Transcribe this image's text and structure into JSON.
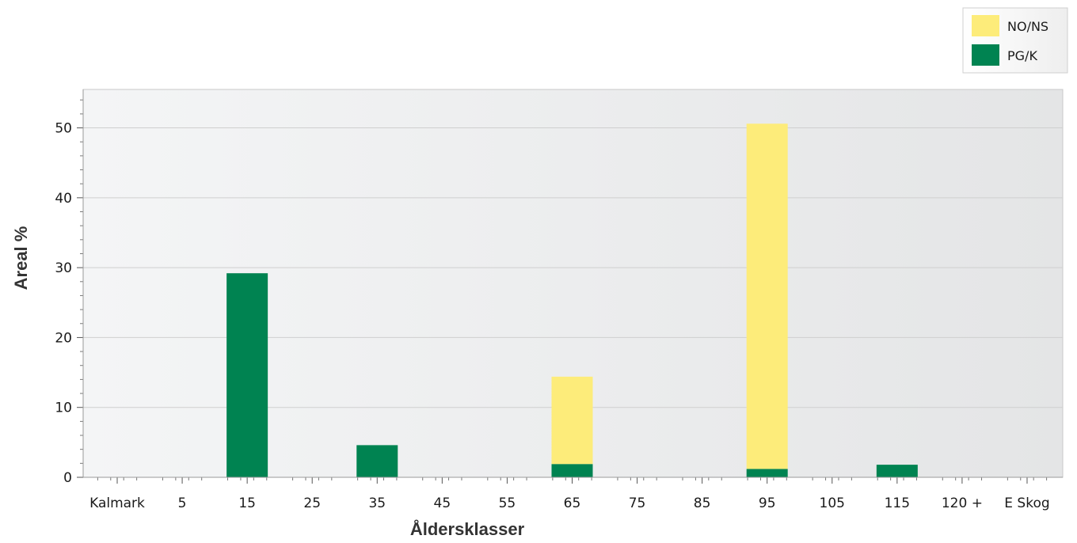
{
  "chart_data": {
    "type": "bar",
    "stacked": true,
    "categories": [
      "Kalmark",
      "5",
      "15",
      "25",
      "35",
      "45",
      "55",
      "65",
      "75",
      "85",
      "95",
      "105",
      "115",
      "120 +",
      "E Skog"
    ],
    "series": [
      {
        "name": "PG/K",
        "color": "#008351",
        "values": [
          0,
          0,
          29.2,
          0,
          4.6,
          0,
          0,
          1.9,
          0,
          0,
          1.2,
          0,
          1.8,
          0,
          0
        ]
      },
      {
        "name": "NO/NS",
        "color": "#fdec7a",
        "values": [
          0,
          0,
          0,
          0,
          0,
          0,
          0,
          12.5,
          0,
          0,
          49.4,
          0,
          0,
          0,
          0
        ]
      }
    ],
    "xlabel": "Åldersklasser",
    "ylabel": "Areal %",
    "ylim": [
      0,
      55.5
    ],
    "yticks": [
      0,
      10,
      20,
      30,
      40,
      50
    ],
    "grid": true,
    "legend_position": "top-right"
  }
}
